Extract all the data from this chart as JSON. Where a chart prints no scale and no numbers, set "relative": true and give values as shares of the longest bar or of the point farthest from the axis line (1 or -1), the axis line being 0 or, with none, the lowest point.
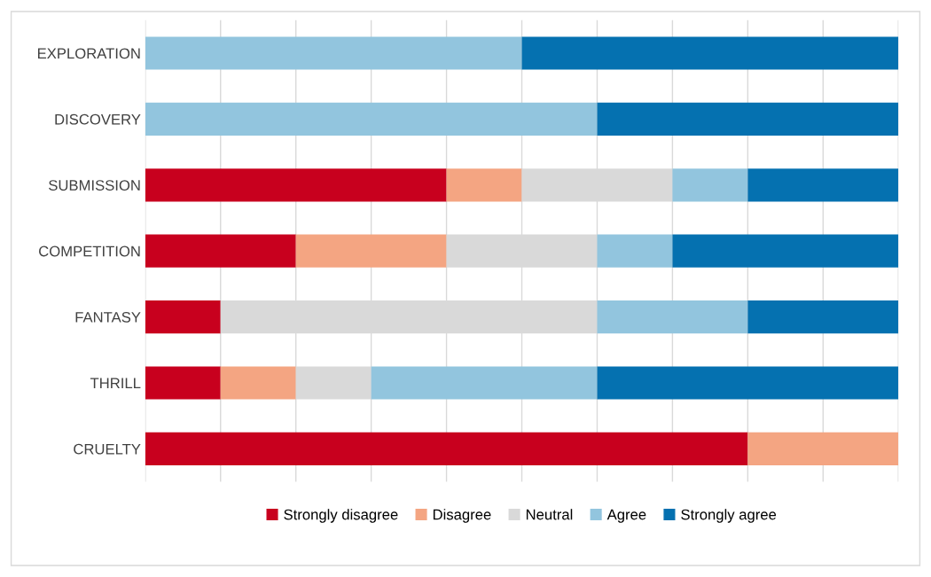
{
  "chart_data": {
    "type": "bar",
    "orientation": "horizontal",
    "stacked": true,
    "relative": true,
    "grid": "x",
    "legend": "bottom",
    "tick_labels": "y",
    "categories": [
      "EXPLORATION",
      "DISCOVERY",
      "SUBMISSION",
      "COMPETITION",
      "FANTASY",
      "THRILL",
      "CRUELTY"
    ],
    "series": [
      {
        "name": "Strongly disagree",
        "color": "#c8001e",
        "values": [
          0,
          0,
          0.4,
          0.2,
          0.1,
          0.1,
          0.8
        ]
      },
      {
        "name": "Disagree",
        "color": "#f4a582",
        "values": [
          0,
          0,
          0.1,
          0.2,
          0,
          0.1,
          0.2
        ]
      },
      {
        "name": "Neutral",
        "color": "#d9d9d9",
        "values": [
          0,
          0,
          0.2,
          0.2,
          0.5,
          0.1,
          0
        ]
      },
      {
        "name": "Agree",
        "color": "#92c5de",
        "values": [
          0.5,
          0.6,
          0.1,
          0.1,
          0.2,
          0.3,
          0
        ]
      },
      {
        "name": "Strongly agree",
        "color": "#0571b0",
        "values": [
          0.5,
          0.4,
          0.2,
          0.3,
          0.2,
          0.4,
          0
        ]
      }
    ]
  }
}
